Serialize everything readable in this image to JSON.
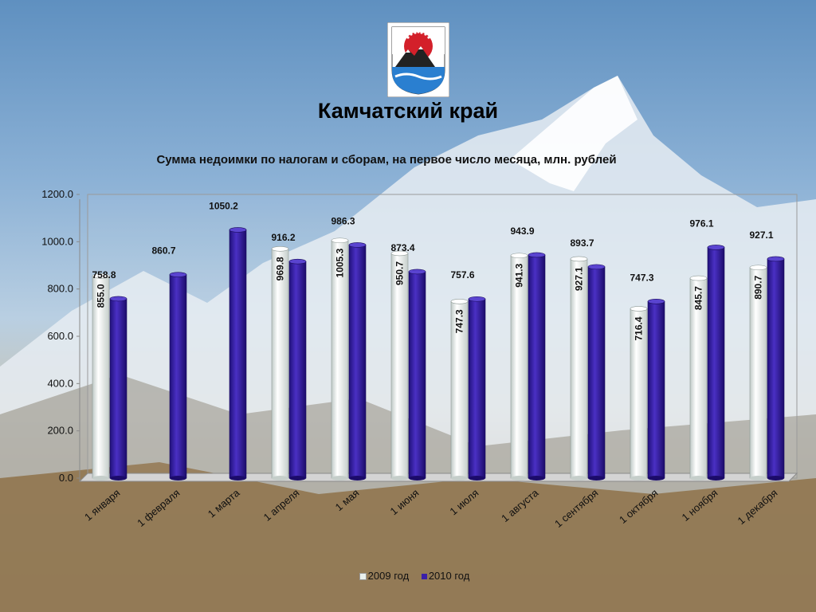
{
  "header": {
    "region_title": "Камчатский край",
    "emblem_icon": "kamchatka-coat-of-arms-icon"
  },
  "chart_data": {
    "type": "bar",
    "title": "Сумма недоимки по налогам и сборам, на первое число месяца, млн. рублей",
    "xlabel": "",
    "ylabel": "",
    "ylim": [
      0,
      1200
    ],
    "y_ticks": [
      "0.0",
      "200.0",
      "400.0",
      "600.0",
      "800.0",
      "1000.0",
      "1200.0"
    ],
    "grid": false,
    "legend_position": "bottom",
    "categories": [
      "1 января",
      "1 февраля",
      "1 марта",
      "1 апреля",
      "1 мая",
      "1 июня",
      "1 июля",
      "1 августа",
      "1 сентября",
      "1 октября",
      "1 ноября",
      "1 декабря"
    ],
    "series": [
      {
        "name": "2009 год",
        "color": "#e9f0ee",
        "values": [
          855.0,
          null,
          null,
          969.8,
          1005.3,
          950.7,
          747.3,
          941.3,
          927.1,
          716.4,
          845.7,
          890.7
        ],
        "labels": [
          "855.0",
          "",
          "",
          "969.8",
          "1005.3",
          "950.7",
          "747.3",
          "941.3",
          "927.1",
          "716.4",
          "845.7",
          "890.7"
        ]
      },
      {
        "name": "2010 год",
        "color": "#3a1fa8",
        "values": [
          758.8,
          860.7,
          1050.2,
          916.2,
          986.3,
          873.4,
          757.6,
          943.9,
          893.7,
          747.3,
          976.1,
          927.1
        ],
        "labels": [
          "758.8",
          "860.7",
          "1050.2",
          "916.2",
          "986.3",
          "873.4",
          "757.6",
          "943.9",
          "893.7",
          "747.3",
          "976.1",
          "927.1"
        ]
      }
    ]
  }
}
